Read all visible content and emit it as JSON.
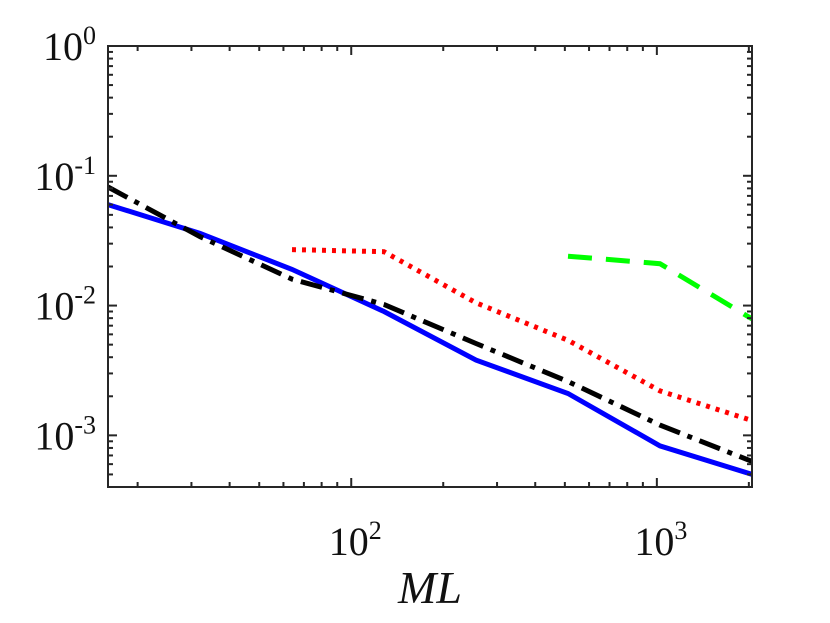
{
  "chart_data": {
    "type": "line",
    "title": "",
    "xlabel": "ML",
    "ylabel": "",
    "xscale": "log",
    "yscale": "log",
    "xlim": [
      16,
      2048
    ],
    "ylim": [
      0.0004,
      1
    ],
    "grid": false,
    "box": true,
    "x_ticks": [
      {
        "value": 100,
        "base": "10",
        "exp": "2"
      },
      {
        "value": 1000,
        "base": "10",
        "exp": "3"
      }
    ],
    "y_ticks": [
      {
        "value": 1,
        "base": "10",
        "exp": "0"
      },
      {
        "value": 0.1,
        "base": "10",
        "exp": "-1"
      },
      {
        "value": 0.01,
        "base": "10",
        "exp": "-2"
      },
      {
        "value": 0.001,
        "base": "10",
        "exp": "-3"
      }
    ],
    "series": [
      {
        "name": "blue-solid",
        "color": "#0000ff",
        "style": "solid",
        "x": [
          16,
          32,
          64,
          128,
          256,
          512,
          1024,
          2048
        ],
        "y": [
          0.06,
          0.036,
          0.019,
          0.009,
          0.0038,
          0.0021,
          0.00083,
          0.0005
        ]
      },
      {
        "name": "black-dashdot",
        "color": "#000000",
        "style": "dashdot",
        "x": [
          16,
          32,
          64,
          128,
          256,
          512,
          1024,
          2048
        ],
        "y": [
          0.082,
          0.034,
          0.016,
          0.0102,
          0.0051,
          0.0026,
          0.0012,
          0.00063
        ]
      },
      {
        "name": "red-dotted",
        "color": "#ff0000",
        "style": "dotted",
        "x": [
          64,
          128,
          256,
          512,
          1024,
          2048
        ],
        "y": [
          0.027,
          0.026,
          0.0105,
          0.0054,
          0.0022,
          0.0013
        ]
      },
      {
        "name": "green-dashed",
        "color": "#00ff00",
        "style": "dashed",
        "x": [
          512,
          1024,
          2048
        ],
        "y": [
          0.024,
          0.021,
          0.0079
        ]
      }
    ]
  }
}
